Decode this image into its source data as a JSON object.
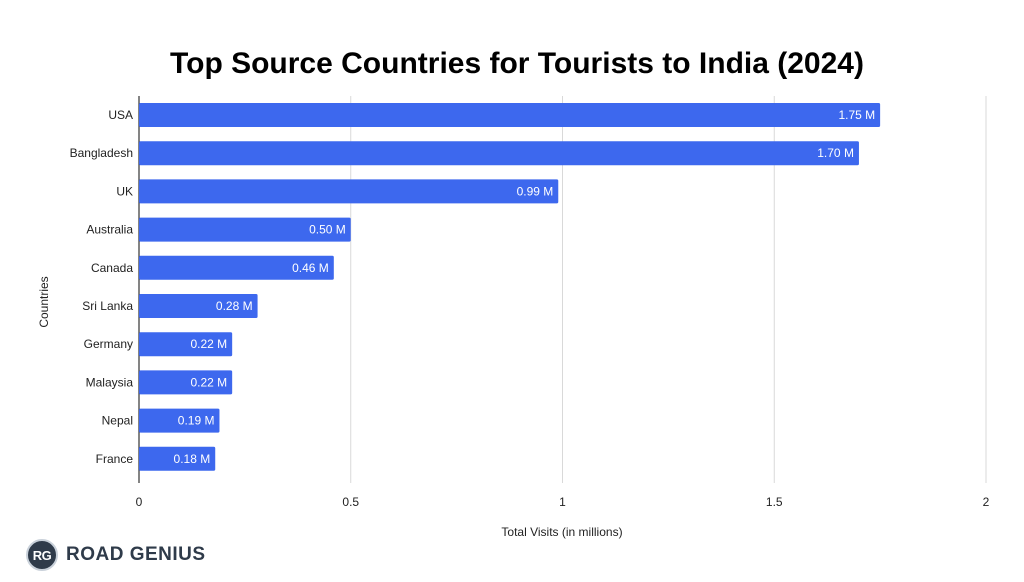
{
  "chart_data": {
    "type": "bar",
    "orientation": "horizontal",
    "title": "Top Source Countries for Tourists to India (2024)",
    "xlabel": "Total Visits (in millions)",
    "ylabel": "Countries",
    "categories": [
      "USA",
      "Bangladesh",
      "UK",
      "Australia",
      "Canada",
      "Sri Lanka",
      "Germany",
      "Malaysia",
      "Nepal",
      "France"
    ],
    "values": [
      1.75,
      1.7,
      0.99,
      0.5,
      0.46,
      0.28,
      0.22,
      0.22,
      0.19,
      0.18
    ],
    "data_labels": [
      "1.75 M",
      "1.70 M",
      "0.99 M",
      "0.50 M",
      "0.46 M",
      "0.28 M",
      "0.22 M",
      "0.22 M",
      "0.19 M",
      "0.18 M"
    ],
    "xlim": [
      0,
      2
    ],
    "xticks": [
      0,
      0.5,
      1,
      1.5,
      2
    ],
    "xtick_labels": [
      "0",
      "0.5",
      "1",
      "1.5",
      "2"
    ],
    "grid": "vertical",
    "legend": "none",
    "bar_color": "#3d68ee"
  },
  "brand": {
    "badge": "RG",
    "name": "ROAD GENIUS"
  }
}
